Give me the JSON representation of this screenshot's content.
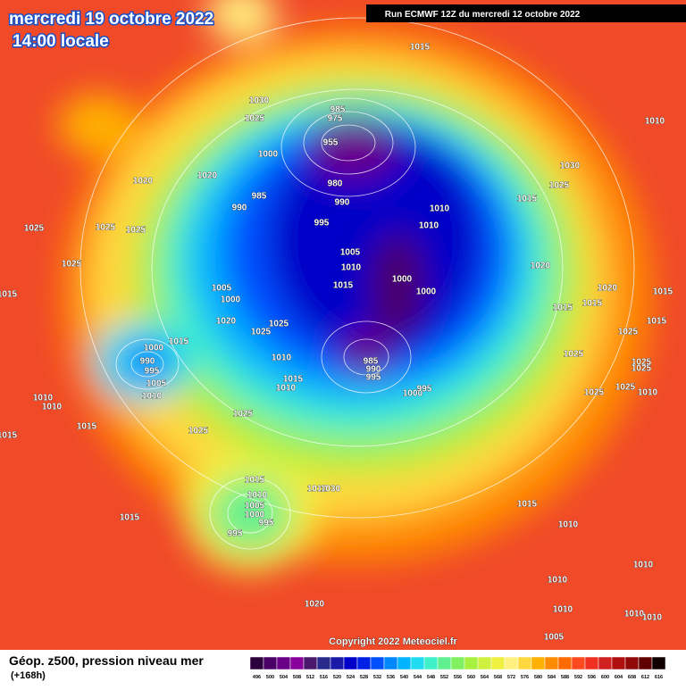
{
  "header": {
    "title": "mercredi 19 octobre 2022",
    "subtitle": "14:00 locale",
    "run": "Run ECMWF 12Z du mercredi 12 octobre 2022"
  },
  "map": {
    "copyright": "Copyright 2022 Meteociel.fr",
    "pressure_labels": [
      1015,
      1030,
      1025,
      985,
      975,
      955,
      1000,
      1020,
      1020,
      985,
      990,
      980,
      990,
      995,
      1025,
      1025,
      1025,
      1025,
      1005,
      1000,
      1020,
      1025,
      1025,
      1015,
      1000,
      990,
      995,
      1005,
      1010,
      1010,
      1010,
      1015,
      1010,
      1015,
      1025,
      1025,
      1010,
      1015,
      1005,
      1010,
      1015,
      1000,
      1000,
      985,
      990,
      995,
      1000,
      995,
      1010,
      1010,
      1010,
      1030,
      1025,
      1015,
      1020,
      1020,
      1015,
      1015,
      1015,
      1015,
      1025,
      1025,
      1025,
      1025,
      1025,
      1010,
      1025,
      1015,
      1010,
      1005,
      1000,
      995,
      995,
      1015,
      1010,
      1030,
      1015,
      1010,
      1010,
      1010,
      1010,
      1010,
      1010,
      1005,
      1020,
      1015
    ]
  },
  "legend": {
    "title": "Géop. z500, pression niveau mer",
    "lead": "(+168h)",
    "values": [
      496,
      500,
      504,
      508,
      512,
      516,
      520,
      524,
      528,
      532,
      536,
      540,
      544,
      548,
      552,
      556,
      560,
      564,
      568,
      572,
      576,
      580,
      584,
      588,
      592,
      596,
      600,
      604,
      608,
      612,
      616
    ],
    "colors": [
      "#2c003c",
      "#4b0066",
      "#6a0088",
      "#8a009c",
      "#4b1a6e",
      "#2a2a8c",
      "#1a1aa8",
      "#0000c8",
      "#0020e6",
      "#0050ff",
      "#0088ff",
      "#00b4ff",
      "#20dcf0",
      "#40f0c8",
      "#60f090",
      "#80f060",
      "#a8f040",
      "#d0f040",
      "#f0f040",
      "#fff080",
      "#ffd840",
      "#ffb000",
      "#ff8c00",
      "#ff6a00",
      "#ff4a20",
      "#f03020",
      "#d02020",
      "#b01010",
      "#900808",
      "#600000",
      "#100000"
    ]
  }
}
